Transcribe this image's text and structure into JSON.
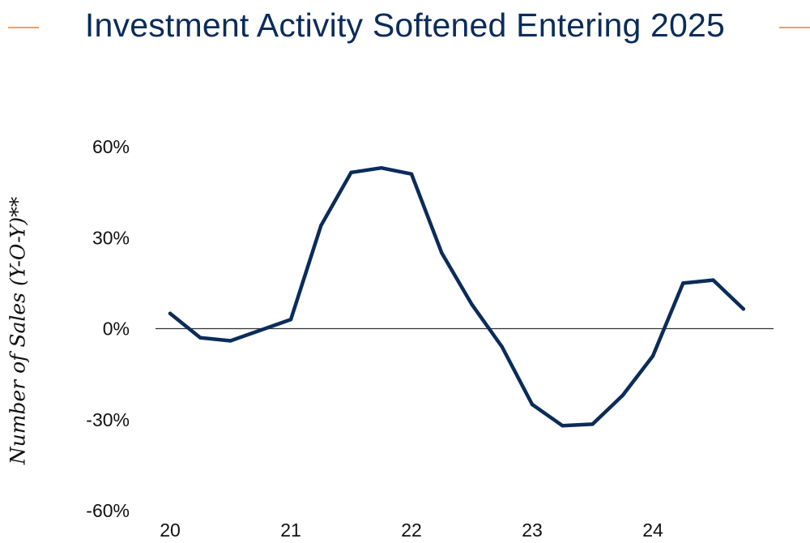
{
  "title": "Investment Activity Softened Entering 2025",
  "colors": {
    "title": "#0b2c5a",
    "line": "#0b2c5a",
    "accent": "#f0a060",
    "zero_line": "#333333"
  },
  "chart_data": {
    "type": "line",
    "title": "Investment Activity Softened Entering 2025",
    "xlabel": "",
    "ylabel": "Number of Sales (Y-O-Y)**",
    "ylim": [
      -60,
      60
    ],
    "yticks": [
      60,
      30,
      0,
      -30,
      -60
    ],
    "ytick_labels": [
      "60%",
      "30%",
      "0%",
      "-30%",
      "-60%"
    ],
    "xticks": [
      2020,
      2021,
      2022,
      2023,
      2024
    ],
    "xtick_labels": [
      "20",
      "21",
      "22",
      "23",
      "24"
    ],
    "xlim": [
      2020,
      2025
    ],
    "grid": false,
    "zero_line": true,
    "series": [
      {
        "x": [
          2020.0,
          2020.25,
          2020.5,
          2020.75,
          2021.0,
          2021.25,
          2021.5,
          2021.75,
          2022.0,
          2022.25,
          2022.5,
          2022.75,
          2023.0,
          2023.25,
          2023.5,
          2023.75,
          2024.0,
          2024.25,
          2024.5,
          2024.75
        ],
        "y": [
          5,
          -3,
          -4,
          -0.5,
          3,
          34,
          51.5,
          53,
          51,
          25,
          8,
          -6,
          -25,
          -32,
          -31.5,
          -22,
          -9,
          15,
          16,
          6.5
        ]
      }
    ]
  }
}
